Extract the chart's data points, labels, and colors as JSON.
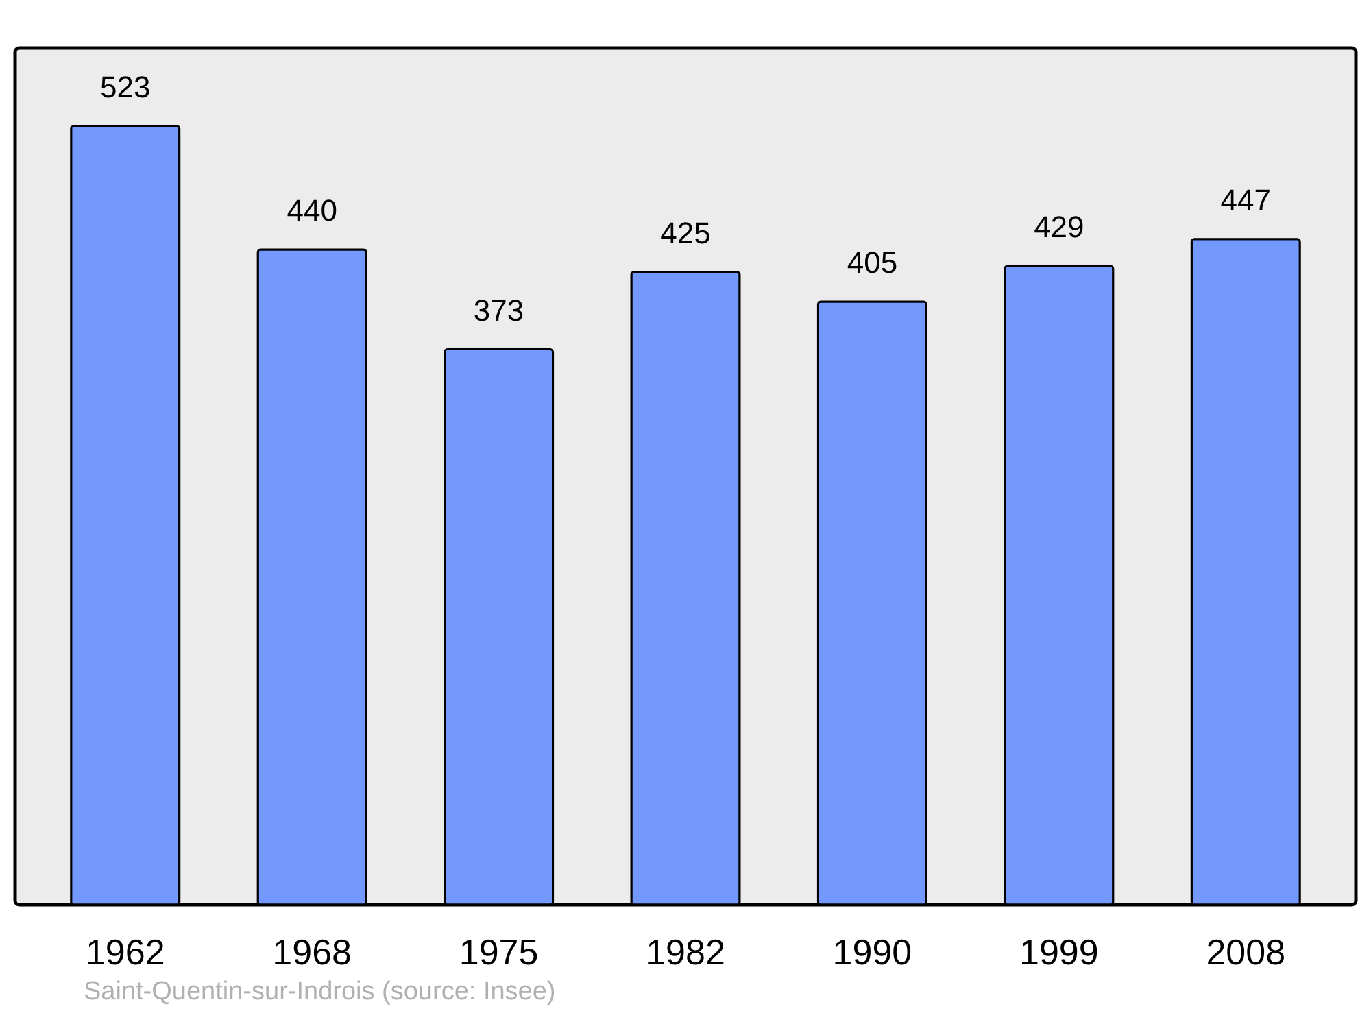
{
  "chart_data": {
    "type": "bar",
    "categories": [
      "1962",
      "1968",
      "1975",
      "1982",
      "1990",
      "1999",
      "2008"
    ],
    "values": [
      523,
      440,
      373,
      425,
      405,
      429,
      447
    ],
    "color": "#7399ff",
    "data_labels": true,
    "annotations": [
      "Saint-Quentin-sur-Indrois    (source: Insee)"
    ]
  }
}
